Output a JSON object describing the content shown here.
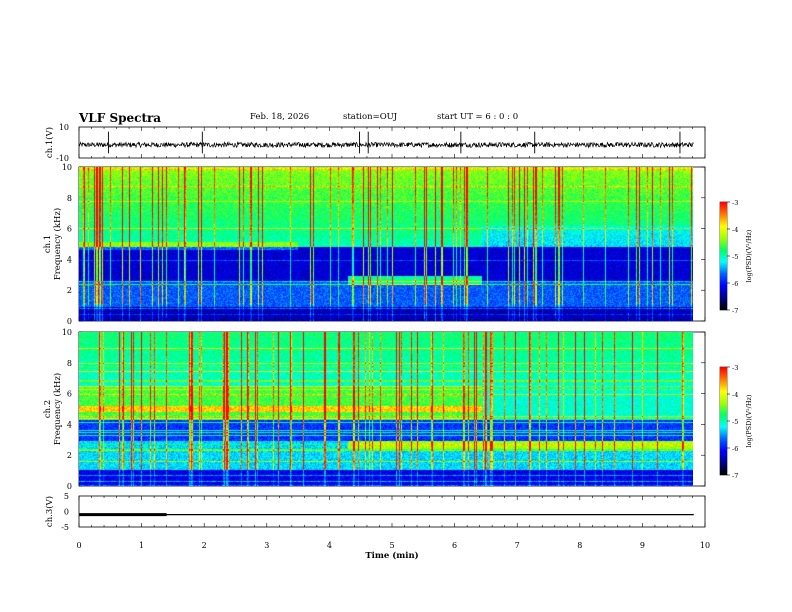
{
  "header": {
    "title": "VLF Spectra",
    "date": "Feb. 18, 2026",
    "station": "station=OUJ",
    "start_ut": "start UT =  6 : 0 : 0"
  },
  "chart_data": [
    {
      "type": "line",
      "name": "ch1-waveform",
      "ylabel": "ch.1(V)",
      "ylim": [
        -10,
        10
      ],
      "yticks": [
        "10",
        "-10"
      ],
      "x": [
        0,
        10
      ],
      "description_level": -1.5,
      "spikes_min": [
        0.47,
        1.97,
        4.48,
        4.62,
        6.1,
        7.28,
        9.6
      ]
    },
    {
      "type": "heatmap",
      "name": "ch1-spectrogram",
      "ylabel_top": "ch.1",
      "ylabel": "Frequency (kHz)",
      "ylim": [
        0,
        10
      ],
      "yticks": [
        "0",
        "2",
        "4",
        "6",
        "8",
        "10"
      ],
      "xlim": [
        0,
        9.82
      ],
      "colorbar": {
        "label": "log(PSD)(V²/Hz)",
        "range": [
          -7,
          -3
        ],
        "ticks": [
          "-3",
          "-4",
          "-5",
          "-6",
          "-7"
        ]
      },
      "noise_band_khz": [
        2.5,
        4.8
      ],
      "event_band_khz": [
        2.3,
        2.9
      ],
      "event_time_min": [
        4.3,
        6.45
      ]
    },
    {
      "type": "heatmap",
      "name": "ch2-spectrogram",
      "ylabel_top": "ch.2",
      "ylabel": "Frequency (kHz)",
      "ylim": [
        0,
        10
      ],
      "yticks": [
        "0",
        "2",
        "4",
        "6",
        "8",
        "10"
      ],
      "xlim": [
        0,
        9.82
      ],
      "colorbar": {
        "label": "log(PSD)(V²/Hz)",
        "range": [
          -7,
          -3
        ],
        "ticks": [
          "-3",
          "-4",
          "-5",
          "-6",
          "-7"
        ]
      },
      "tone_khz": 5.0,
      "tone_end_min": 6.45,
      "event_band_khz": [
        2.4,
        2.9
      ]
    },
    {
      "type": "line",
      "name": "ch3-trace",
      "ylabel": "ch.3(V)",
      "ylim": [
        -5,
        5
      ],
      "yticks": [
        "5",
        "0",
        "-5"
      ],
      "level": -1,
      "thick_until_min": 1.4,
      "xlabel": "Time  (min)",
      "xlim": [
        0,
        10
      ],
      "xticks": [
        "0",
        "1",
        "2",
        "3",
        "4",
        "5",
        "6",
        "7",
        "8",
        "9",
        "10"
      ]
    }
  ],
  "colors": {
    "colormap": [
      "#000000",
      "#00008c",
      "#0000ff",
      "#0064ff",
      "#00ffff",
      "#00ff64",
      "#a0ff00",
      "#ffff00",
      "#ff7800",
      "#ff0000",
      "#ffffff"
    ]
  }
}
